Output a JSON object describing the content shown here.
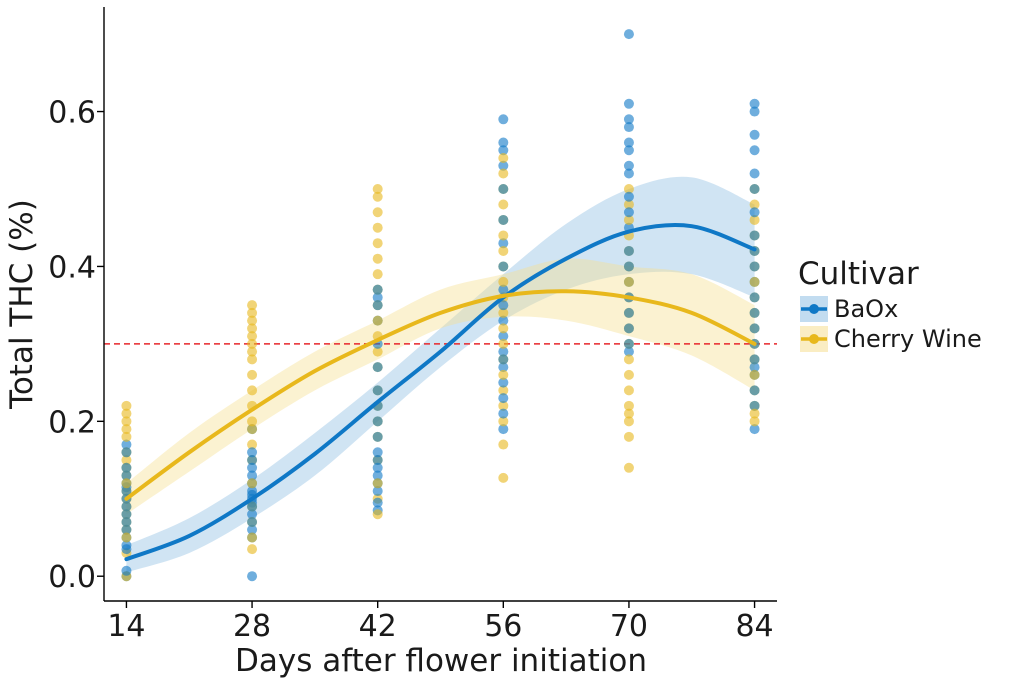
{
  "chart_data": {
    "type": "scatter",
    "xlabel": "Days after flower initiation",
    "ylabel": "Total THC (%)",
    "x_ticks": [
      14,
      28,
      42,
      56,
      70,
      84
    ],
    "y_ticks": [
      0.0,
      0.2,
      0.4,
      0.6
    ],
    "y_tick_labels": [
      "0.0",
      "0.2",
      "0.4",
      "0.6"
    ],
    "xlim": [
      11.5,
      86.5
    ],
    "ylim": [
      -0.032,
      0.735
    ],
    "reference_line": {
      "y": 0.3,
      "style": "dashed",
      "color": "#e8262b"
    },
    "legend": {
      "title": "Cultivar",
      "position": "right"
    },
    "series": [
      {
        "name": "BaOx",
        "color": "#0f78c6",
        "band_color": "#8fbfe3",
        "points": {
          "14": [
            0.0,
            0.007,
            0.035,
            0.04,
            0.05,
            0.06,
            0.07,
            0.08,
            0.09,
            0.1,
            0.11,
            0.115,
            0.12,
            0.13,
            0.14,
            0.16,
            0.17
          ],
          "28": [
            0.0,
            0.05,
            0.06,
            0.07,
            0.08,
            0.09,
            0.095,
            0.1,
            0.105,
            0.11,
            0.12,
            0.13,
            0.14,
            0.15,
            0.16,
            0.19
          ],
          "42": [
            0.085,
            0.095,
            0.11,
            0.12,
            0.13,
            0.14,
            0.15,
            0.16,
            0.18,
            0.2,
            0.22,
            0.24,
            0.27,
            0.3,
            0.33,
            0.35,
            0.36,
            0.37
          ],
          "56": [
            0.19,
            0.21,
            0.23,
            0.25,
            0.27,
            0.28,
            0.29,
            0.31,
            0.33,
            0.35,
            0.37,
            0.4,
            0.43,
            0.46,
            0.5,
            0.53,
            0.55,
            0.56,
            0.59
          ],
          "70": [
            0.29,
            0.3,
            0.32,
            0.34,
            0.36,
            0.38,
            0.4,
            0.42,
            0.45,
            0.47,
            0.49,
            0.52,
            0.53,
            0.55,
            0.56,
            0.58,
            0.59,
            0.61,
            0.7
          ],
          "84": [
            0.19,
            0.22,
            0.24,
            0.26,
            0.27,
            0.28,
            0.3,
            0.32,
            0.34,
            0.36,
            0.38,
            0.4,
            0.42,
            0.44,
            0.47,
            0.5,
            0.52,
            0.55,
            0.57,
            0.6,
            0.61
          ]
        },
        "fit": {
          "x": [
            14,
            21,
            28,
            35,
            42,
            49,
            56,
            63,
            70,
            77,
            84
          ],
          "y": [
            0.022,
            0.052,
            0.1,
            0.158,
            0.225,
            0.29,
            0.36,
            0.41,
            0.445,
            0.452,
            0.422
          ],
          "lower": [
            0.005,
            0.03,
            0.075,
            0.13,
            0.2,
            0.27,
            0.33,
            0.37,
            0.39,
            0.39,
            0.36
          ],
          "upper": [
            0.04,
            0.075,
            0.125,
            0.185,
            0.25,
            0.32,
            0.39,
            0.455,
            0.5,
            0.515,
            0.48
          ]
        }
      },
      {
        "name": "Cherry Wine",
        "color": "#e8b81c",
        "band_color": "#f6df91",
        "points": {
          "14": [
            0.0,
            0.03,
            0.05,
            0.06,
            0.07,
            0.08,
            0.09,
            0.1,
            0.11,
            0.12,
            0.13,
            0.14,
            0.15,
            0.16,
            0.18,
            0.19,
            0.2,
            0.21,
            0.22
          ],
          "28": [
            0.035,
            0.05,
            0.07,
            0.09,
            0.12,
            0.15,
            0.17,
            0.19,
            0.2,
            0.22,
            0.24,
            0.26,
            0.28,
            0.29,
            0.3,
            0.31,
            0.32,
            0.33,
            0.34,
            0.35
          ],
          "42": [
            0.08,
            0.1,
            0.12,
            0.15,
            0.18,
            0.2,
            0.22,
            0.24,
            0.27,
            0.29,
            0.31,
            0.33,
            0.35,
            0.37,
            0.39,
            0.41,
            0.43,
            0.45,
            0.47,
            0.49,
            0.5
          ],
          "56": [
            0.127,
            0.17,
            0.2,
            0.22,
            0.24,
            0.26,
            0.28,
            0.3,
            0.32,
            0.34,
            0.36,
            0.38,
            0.4,
            0.42,
            0.44,
            0.46,
            0.48,
            0.5,
            0.52,
            0.54
          ],
          "70": [
            0.14,
            0.18,
            0.2,
            0.21,
            0.22,
            0.24,
            0.26,
            0.28,
            0.3,
            0.32,
            0.34,
            0.36,
            0.38,
            0.4,
            0.42,
            0.44,
            0.46,
            0.48,
            0.5
          ],
          "84": [
            0.2,
            0.21,
            0.22,
            0.24,
            0.26,
            0.28,
            0.3,
            0.32,
            0.34,
            0.36,
            0.38,
            0.4,
            0.42,
            0.44,
            0.46,
            0.48,
            0.5
          ]
        },
        "fit": {
          "x": [
            14,
            21,
            28,
            35,
            42,
            49,
            56,
            63,
            70,
            77,
            84
          ],
          "y": [
            0.1,
            0.16,
            0.215,
            0.265,
            0.305,
            0.34,
            0.362,
            0.368,
            0.36,
            0.34,
            0.3
          ],
          "lower": [
            0.08,
            0.135,
            0.19,
            0.24,
            0.28,
            0.32,
            0.335,
            0.33,
            0.31,
            0.285,
            0.24
          ],
          "upper": [
            0.12,
            0.185,
            0.24,
            0.29,
            0.33,
            0.37,
            0.39,
            0.41,
            0.4,
            0.39,
            0.35
          ]
        }
      }
    ]
  }
}
